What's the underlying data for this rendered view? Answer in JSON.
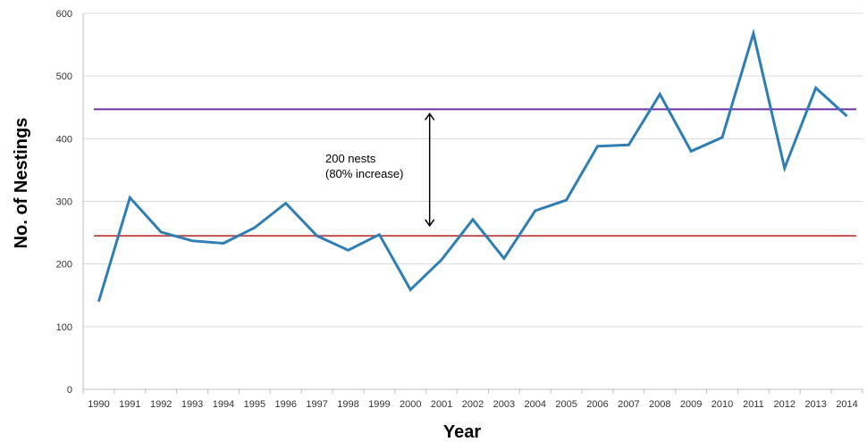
{
  "chart_data": {
    "type": "line",
    "title": "",
    "xlabel": "Year",
    "ylabel": "No. of Nestings",
    "ylim": [
      0,
      600
    ],
    "yticks": [
      0,
      100,
      200,
      300,
      400,
      500,
      600
    ],
    "grid": true,
    "categories": [
      "1990",
      "1991",
      "1992",
      "1993",
      "1994",
      "1995",
      "1996",
      "1997",
      "1998",
      "1999",
      "2000",
      "2001",
      "2002",
      "2003",
      "2004",
      "2005",
      "2006",
      "2007",
      "2008",
      "2009",
      "2010",
      "2011",
      "2012",
      "2013",
      "2014"
    ],
    "series": [
      {
        "color": "#2E7EB5",
        "values": [
          140,
          306,
          251,
          237,
          233,
          258,
          297,
          245,
          222,
          247,
          159,
          207,
          271,
          209,
          285,
          302,
          388,
          390,
          471,
          380,
          402,
          568,
          353,
          481,
          436
        ]
      }
    ],
    "reference_lines": [
      {
        "value": 447,
        "color": "#7030A0"
      },
      {
        "value": 245,
        "color": "#C0504D"
      }
    ],
    "annotation": {
      "line1": "200 nests",
      "line2": "(80% increase)",
      "arrow_from": 261,
      "arrow_to": 440,
      "arrow_at_category": "2001"
    }
  }
}
